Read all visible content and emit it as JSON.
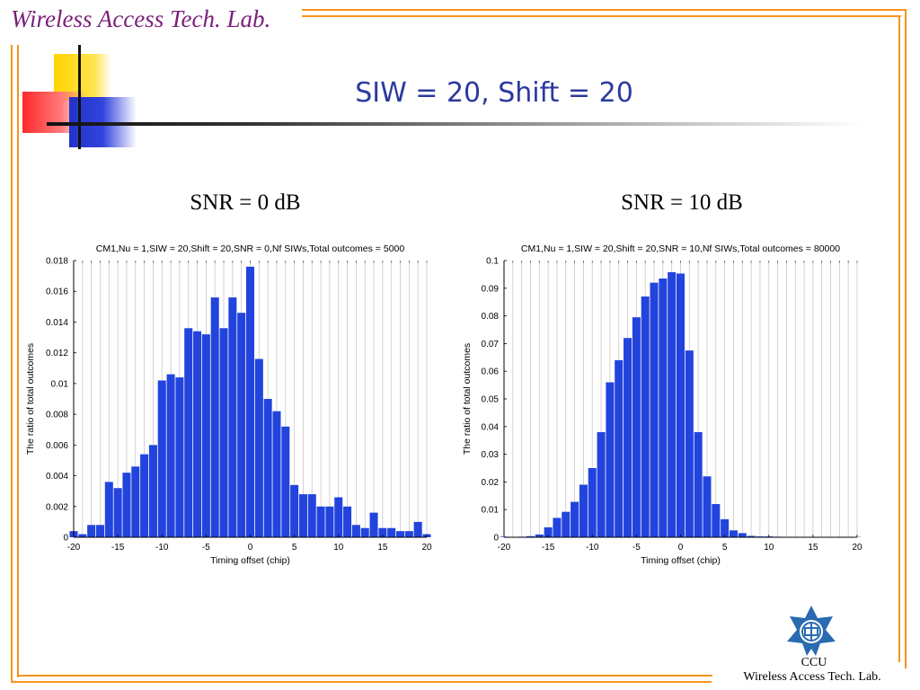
{
  "header": {
    "lab_name": "Wireless Access Tech. Lab."
  },
  "slide": {
    "title": "SIW = 20, Shift = 20"
  },
  "panels": [
    {
      "heading": "SNR = 0 dB"
    },
    {
      "heading": "SNR = 10 dB"
    }
  ],
  "footer": {
    "org": "CCU",
    "lab_name": "Wireless Access Tech. Lab."
  },
  "colors": {
    "frame_orange": "#f7941d",
    "title_purple": "#7a1f7a",
    "slide_title_blue": "#2b3a9e",
    "bar_blue": "#2244dd",
    "logo_blue": "#2a6ab0"
  },
  "icons": {
    "logo": "ccu-emblem-icon"
  },
  "chart_data": [
    {
      "type": "bar",
      "title": "CM1,Nu = 1,SIW = 20,Shift = 20,SNR = 0,Nf SIWs,Total outcomes = 5000",
      "xlabel": "Timing offset (chip)",
      "ylabel": "The ratio of total outcomes",
      "xlim": [
        -20,
        20
      ],
      "ylim": [
        0,
        0.018
      ],
      "xticks": [
        -20,
        -15,
        -10,
        -5,
        0,
        5,
        10,
        15,
        20
      ],
      "yticks": [
        0,
        0.002,
        0.004,
        0.006,
        0.008,
        0.01,
        0.012,
        0.014,
        0.016,
        0.018
      ],
      "grid": "vertical",
      "x": [
        -20,
        -19,
        -18,
        -17,
        -16,
        -15,
        -14,
        -13,
        -12,
        -11,
        -10,
        -9,
        -8,
        -7,
        -6,
        -5,
        -4,
        -3,
        -2,
        -1,
        0,
        1,
        2,
        3,
        4,
        5,
        6,
        7,
        8,
        9,
        10,
        11,
        12,
        13,
        14,
        15,
        16,
        17,
        18,
        19,
        20
      ],
      "values": [
        0.0004,
        0.0002,
        0.0008,
        0.0008,
        0.0036,
        0.0032,
        0.0042,
        0.0046,
        0.0054,
        0.006,
        0.0102,
        0.0106,
        0.0104,
        0.0136,
        0.0134,
        0.0132,
        0.0156,
        0.0136,
        0.0156,
        0.0146,
        0.0176,
        0.0116,
        0.009,
        0.0082,
        0.0072,
        0.0034,
        0.0028,
        0.0028,
        0.002,
        0.002,
        0.0026,
        0.002,
        0.0008,
        0.0006,
        0.0016,
        0.0006,
        0.0006,
        0.0004,
        0.0004,
        0.001,
        0.0002
      ]
    },
    {
      "type": "bar",
      "title": "CM1,Nu = 1,SIW = 20,Shift = 20,SNR = 10,Nf SIWs,Total outcomes = 80000",
      "xlabel": "Timing offset (chip)",
      "ylabel": "The ratio of total outcomes",
      "xlim": [
        -20,
        20
      ],
      "ylim": [
        0,
        0.1
      ],
      "xticks": [
        -20,
        -15,
        -10,
        -5,
        0,
        5,
        10,
        15,
        20
      ],
      "yticks": [
        0,
        0.01,
        0.02,
        0.03,
        0.04,
        0.05,
        0.06,
        0.07,
        0.08,
        0.09,
        0.1
      ],
      "grid": "vertical",
      "x": [
        -20,
        -19,
        -18,
        -17,
        -16,
        -15,
        -14,
        -13,
        -12,
        -11,
        -10,
        -9,
        -8,
        -7,
        -6,
        -5,
        -4,
        -3,
        -2,
        -1,
        0,
        1,
        2,
        3,
        4,
        5,
        6,
        7,
        8,
        9,
        10,
        11,
        12,
        13,
        14,
        15,
        16,
        17,
        18,
        19,
        20
      ],
      "values": [
        0.0002,
        0,
        0.0002,
        0.0004,
        0.001,
        0.0036,
        0.007,
        0.0092,
        0.0128,
        0.019,
        0.025,
        0.038,
        0.056,
        0.064,
        0.072,
        0.0795,
        0.087,
        0.092,
        0.0935,
        0.0958,
        0.0953,
        0.0675,
        0.038,
        0.022,
        0.012,
        0.0065,
        0.0025,
        0.0015,
        0.0005,
        0.0003,
        0.0003,
        0.0002,
        0.0001,
        0,
        0.0001,
        0,
        0,
        0,
        0,
        0,
        0.0001
      ]
    }
  ]
}
